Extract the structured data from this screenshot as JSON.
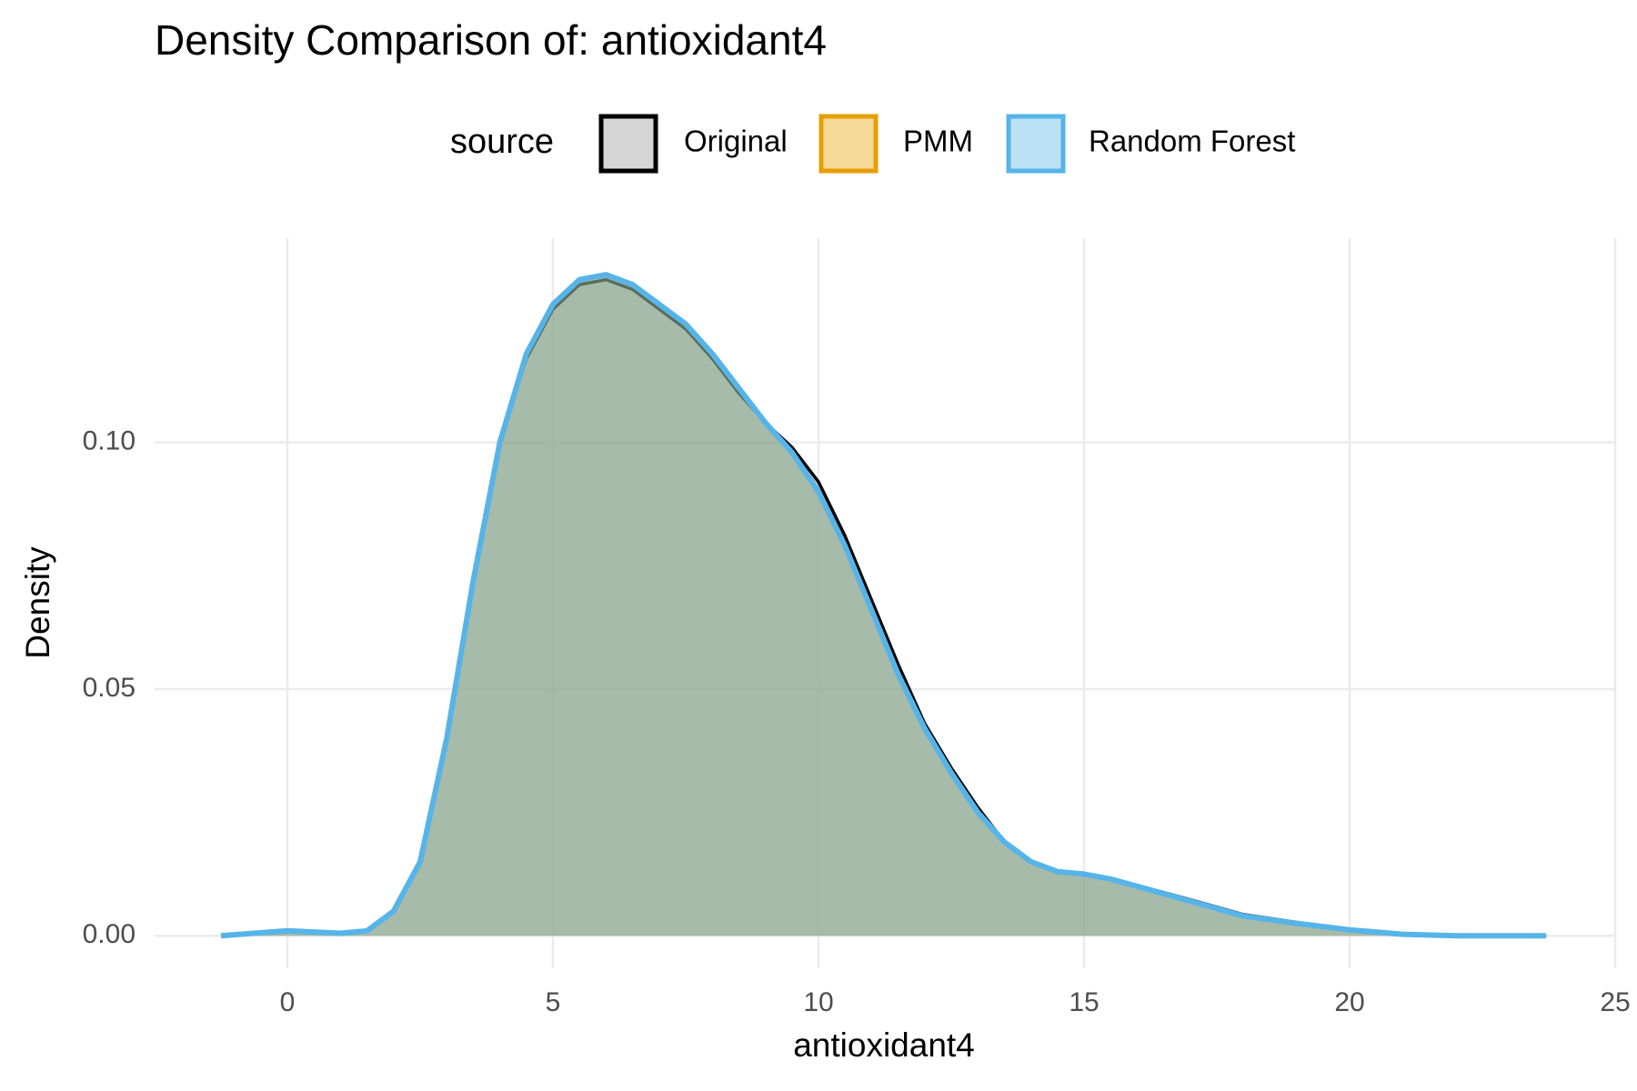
{
  "chart_data": {
    "type": "density",
    "title": "Density Comparison of: antioxidant4",
    "x_label": "antioxidant4",
    "y_label": "Density",
    "legend_title": "source",
    "legend_position": "top",
    "x": [
      -1.25,
      0,
      1,
      1.5,
      2,
      2.5,
      3,
      3.5,
      4,
      4.5,
      5,
      5.5,
      6,
      6.5,
      7,
      7.5,
      8,
      8.5,
      9,
      9.5,
      10,
      10.5,
      11,
      11.5,
      12,
      12.5,
      13,
      13.5,
      14,
      14.5,
      15,
      15.5,
      16,
      17,
      18,
      19,
      20,
      21,
      22,
      23.7
    ],
    "series": [
      {
        "name": "Original",
        "color": "#000000",
        "fill": "#999999",
        "values": [
          0,
          0.001,
          0.0005,
          0.001,
          0.005,
          0.015,
          0.04,
          0.072,
          0.1,
          0.117,
          0.127,
          0.132,
          0.133,
          0.131,
          0.127,
          0.123,
          0.117,
          0.11,
          0.104,
          0.099,
          0.092,
          0.081,
          0.068,
          0.055,
          0.043,
          0.034,
          0.026,
          0.019,
          0.015,
          0.013,
          0.0125,
          0.0115,
          0.0102,
          0.0073,
          0.0043,
          0.0027,
          0.0013,
          0.0003,
          0,
          0
        ]
      },
      {
        "name": "PMM",
        "color": "#E69F00",
        "fill": "#E69F00",
        "values": [
          0,
          0.001,
          0.0005,
          0.001,
          0.005,
          0.015,
          0.04,
          0.072,
          0.1,
          0.118,
          0.128,
          0.133,
          0.134,
          0.132,
          0.128,
          0.124,
          0.118,
          0.111,
          0.104,
          0.098,
          0.09,
          0.079,
          0.066,
          0.053,
          0.042,
          0.033,
          0.025,
          0.019,
          0.015,
          0.013,
          0.0125,
          0.0115,
          0.01,
          0.007,
          0.004,
          0.0025,
          0.0012,
          0.0003,
          0,
          0
        ]
      },
      {
        "name": "Random Forest",
        "color": "#56B4E9",
        "fill": "#56B4E9",
        "values": [
          0,
          0.001,
          0.0005,
          0.001,
          0.005,
          0.015,
          0.04,
          0.072,
          0.1,
          0.118,
          0.128,
          0.133,
          0.134,
          0.132,
          0.128,
          0.124,
          0.118,
          0.111,
          0.104,
          0.098,
          0.09,
          0.079,
          0.066,
          0.053,
          0.042,
          0.033,
          0.025,
          0.019,
          0.015,
          0.013,
          0.0125,
          0.0115,
          0.01,
          0.007,
          0.004,
          0.0025,
          0.0012,
          0.0003,
          0,
          0
        ]
      }
    ],
    "xlim": [
      -2.5,
      25
    ],
    "xticks": [
      0,
      5,
      10,
      15,
      20,
      25
    ],
    "ylim": [
      -0.0066,
      0.1414
    ],
    "yticks": [
      {
        "value": 0,
        "label": "0.00"
      },
      0.05,
      {
        "value": 0.1,
        "label": "0.10"
      }
    ],
    "grid": true
  }
}
